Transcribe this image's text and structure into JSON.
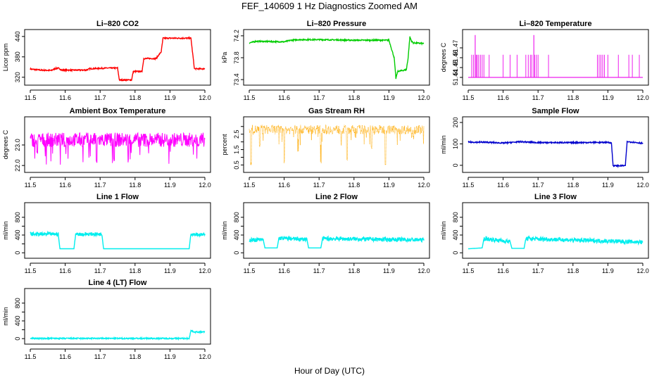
{
  "figure": {
    "title": "FEF_140609  1 Hz Diagnostics Zoomed AM",
    "xlabel": "Hour of Day (UTC)"
  },
  "chart_data": [
    {
      "id": "co2",
      "type": "line",
      "title": "Li–820 CO2",
      "ylabel": "Licor ppm",
      "color": "#ff0000",
      "xlim": [
        11.5,
        12.0
      ],
      "ylim": [
        305,
        450
      ],
      "yticks": [
        320,
        380,
        440
      ],
      "ytick_labels": [
        "320",
        "380",
        "440"
      ],
      "xticks": [
        11.5,
        11.6,
        11.7,
        11.8,
        11.9,
        12.0
      ],
      "xtick_labels": [
        "11.5",
        "11.6",
        "11.7",
        "11.8",
        "11.9",
        "12.0"
      ],
      "series": [
        {
          "name": "CO2",
          "x": [
            11.5,
            11.53,
            11.56,
            11.57,
            11.58,
            11.59,
            11.66,
            11.67,
            11.72,
            11.75,
            11.755,
            11.79,
            11.795,
            11.82,
            11.825,
            11.86,
            11.875,
            11.88,
            11.96,
            11.97,
            12.0
          ],
          "y": [
            344,
            341,
            340,
            345,
            347,
            341,
            341,
            345,
            347,
            347,
            312,
            312,
            337,
            337,
            375,
            375,
            395,
            435,
            435,
            345,
            345
          ]
        }
      ]
    },
    {
      "id": "pressure",
      "type": "line",
      "title": "Li–820 Pressure",
      "ylabel": "kPa",
      "color": "#00cc00",
      "xlim": [
        11.5,
        12.0
      ],
      "ylim": [
        73.35,
        74.25
      ],
      "yticks": [
        73.4,
        73.8,
        74.2
      ],
      "ytick_labels": [
        "73.4",
        "73.8",
        "74.2"
      ],
      "xticks": [
        11.5,
        11.6,
        11.7,
        11.8,
        11.9,
        12.0
      ],
      "xtick_labels": [
        "11.5",
        "11.6",
        "11.7",
        "11.8",
        "11.9",
        "12.0"
      ],
      "series": [
        {
          "name": "Pressure",
          "x": [
            11.5,
            11.52,
            11.6,
            11.62,
            11.64,
            11.7,
            11.8,
            11.9,
            11.915,
            11.92,
            11.925,
            11.95,
            11.955,
            11.96,
            11.965,
            11.97,
            12.0
          ],
          "y": [
            74.07,
            74.1,
            74.09,
            74.12,
            74.13,
            74.13,
            74.12,
            74.12,
            73.8,
            73.42,
            73.55,
            73.58,
            73.8,
            74.18,
            74.1,
            74.07,
            74.06
          ]
        }
      ]
    },
    {
      "id": "li_temp",
      "type": "line",
      "title": "Li–820 Temperature",
      "ylabel": "degrees C",
      "color": "#ee22ee",
      "xlim": [
        11.5,
        12.0
      ],
      "ylim": [
        51.435,
        51.485
      ],
      "yticks": [
        51.44,
        51.45,
        51.46,
        51.47
      ],
      "ytick_labels": [
        "51.44",
        "51.45",
        "51.46",
        "51.47"
      ],
      "xticks": [
        11.5,
        11.6,
        11.7,
        11.8,
        11.9,
        12.0
      ],
      "xtick_labels": [
        "11.5",
        "11.6",
        "11.7",
        "11.8",
        "11.9",
        "12.0"
      ],
      "series": [
        {
          "name": "Temperature",
          "base": 51.44,
          "spike_high": 51.463,
          "peak": 51.483,
          "spikes": [
            11.51,
            11.515,
            11.52,
            11.523,
            11.526,
            11.53,
            11.535,
            11.54,
            11.545,
            11.56,
            11.6,
            11.62,
            11.64,
            11.665,
            11.672,
            11.678,
            11.682,
            11.69,
            11.695,
            11.7,
            11.73,
            11.87,
            11.875,
            11.88,
            11.885,
            11.89,
            11.9,
            11.93,
            11.96,
            11.97,
            11.99
          ],
          "peak_x": [
            11.52,
            11.688
          ]
        }
      ]
    },
    {
      "id": "box_temp",
      "type": "line",
      "title": "Ambient Box Temperature",
      "ylabel": "degrees C",
      "color": "#ff00ff",
      "xlim": [
        11.5,
        12.0
      ],
      "ylim": [
        21.8,
        24.2
      ],
      "yticks": [
        22.0,
        23.0
      ],
      "ytick_labels": [
        "22.0",
        "23.0"
      ],
      "xticks": [
        11.5,
        11.6,
        11.7,
        11.8,
        11.9,
        12.0
      ],
      "xtick_labels": [
        "11.5",
        "11.6",
        "11.7",
        "11.8",
        "11.9",
        "12.0"
      ],
      "series": [
        {
          "name": "Box Temperature",
          "mean": 23.25,
          "spread": 0.35,
          "dips": [
            [
              11.52,
              22.5
            ],
            [
              11.69,
              22.1
            ],
            [
              11.74,
              22.2
            ],
            [
              11.6,
              22.8
            ],
            [
              11.98,
              22.8
            ]
          ]
        }
      ]
    },
    {
      "id": "rh",
      "type": "scatter",
      "title": "Gas Stream RH",
      "ylabel": "percent",
      "color": "#ffaa00",
      "xlim": [
        11.5,
        12.0
      ],
      "ylim": [
        0.2,
        3.4
      ],
      "yticks": [
        0.5,
        1.0,
        1.5,
        2.0,
        2.5,
        3.0
      ],
      "ytick_labels": [
        "0.5",
        "1.5",
        "2.5"
      ],
      "xticks": [
        11.5,
        11.6,
        11.7,
        11.8,
        11.9,
        12.0
      ],
      "xtick_labels": [
        "11.5",
        "11.6",
        "11.7",
        "11.8",
        "11.9",
        "12.0"
      ],
      "series": [
        {
          "name": "RH",
          "mean": 2.8,
          "spread": 0.3,
          "dips": [
            [
              11.505,
              0.5
            ],
            [
              11.6,
              0.6
            ],
            [
              11.64,
              1.3
            ],
            [
              11.705,
              0.6
            ],
            [
              11.78,
              0.8
            ],
            [
              11.89,
              0.5
            ],
            [
              11.97,
              2.2
            ],
            [
              11.53,
              1.6
            ],
            [
              11.85,
              1.5
            ]
          ]
        }
      ]
    },
    {
      "id": "sample_flow",
      "type": "line",
      "title": "Sample Flow",
      "ylabel": "ml/min",
      "color": "#0000cc",
      "xlim": [
        11.5,
        12.0
      ],
      "ylim": [
        -20,
        210
      ],
      "yticks": [
        0,
        100,
        200
      ],
      "ytick_labels": [
        "0",
        "100",
        "200"
      ],
      "xticks": [
        11.5,
        11.6,
        11.7,
        11.8,
        11.9,
        12.0
      ],
      "xtick_labels": [
        "11.5",
        "11.6",
        "11.7",
        "11.8",
        "11.9",
        "12.0"
      ],
      "series": [
        {
          "name": "Sample Flow",
          "x": [
            11.5,
            11.55,
            11.6,
            11.65,
            11.7,
            11.8,
            11.9,
            11.91,
            11.915,
            11.95,
            11.955,
            11.96,
            12.0
          ],
          "y": [
            108,
            108,
            104,
            110,
            106,
            106,
            107,
            105,
            -2,
            -2,
            110,
            110,
            103
          ]
        }
      ]
    },
    {
      "id": "line1",
      "type": "line",
      "title": "Line 1 Flow",
      "ylabel": "ml/min",
      "color": "#00eeee",
      "xlim": [
        11.5,
        12.0
      ],
      "ylim": [
        -60,
        1050
      ],
      "yticks": [
        0,
        200,
        400,
        600,
        800
      ],
      "ytick_labels": [
        "0",
        "400",
        "800"
      ],
      "xticks": [
        11.5,
        11.6,
        11.7,
        11.8,
        11.9,
        12.0
      ],
      "xtick_labels": [
        "11.5",
        "11.6",
        "11.7",
        "11.8",
        "11.9",
        "12.0"
      ],
      "series": [
        {
          "name": "Line 1",
          "x": [
            11.5,
            11.58,
            11.585,
            11.625,
            11.63,
            11.705,
            11.71,
            11.955,
            11.96,
            12.0
          ],
          "y": [
            420,
            420,
            90,
            90,
            420,
            420,
            90,
            90,
            430,
            400
          ],
          "noisy": [
            [
              11.5,
              11.58
            ],
            [
              11.63,
              11.705
            ],
            [
              11.96,
              12.0
            ]
          ],
          "noise": 40
        }
      ]
    },
    {
      "id": "line2",
      "type": "line",
      "title": "Line 2 Flow",
      "ylabel": "ml/min",
      "color": "#00eeee",
      "xlim": [
        11.5,
        12.0
      ],
      "ylim": [
        -60,
        1050
      ],
      "yticks": [
        0,
        200,
        400,
        600,
        800
      ],
      "ytick_labels": [
        "0",
        "400",
        "800"
      ],
      "xticks": [
        11.5,
        11.6,
        11.7,
        11.8,
        11.9,
        12.0
      ],
      "xtick_labels": [
        "11.5",
        "11.6",
        "11.7",
        "11.8",
        "11.9",
        "12.0"
      ],
      "series": [
        {
          "name": "Line 2",
          "x": [
            11.5,
            11.54,
            11.545,
            11.58,
            11.585,
            11.665,
            11.67,
            11.705,
            11.71,
            12.0
          ],
          "y": [
            290,
            290,
            110,
            110,
            330,
            300,
            110,
            110,
            320,
            290
          ],
          "noisy": [
            [
              11.5,
              11.54
            ],
            [
              11.585,
              11.665
            ],
            [
              11.71,
              12.0
            ]
          ],
          "noise": 45
        }
      ]
    },
    {
      "id": "line3",
      "type": "line",
      "title": "Line 3 Flow",
      "ylabel": "ml/min",
      "color": "#00eeee",
      "xlim": [
        11.5,
        12.0
      ],
      "ylim": [
        -60,
        1050
      ],
      "yticks": [
        0,
        200,
        400,
        600,
        800
      ],
      "ytick_labels": [
        "0",
        "400",
        "800"
      ],
      "xticks": [
        11.5,
        11.6,
        11.7,
        11.8,
        11.9,
        12.0
      ],
      "xtick_labels": [
        "11.5",
        "11.6",
        "11.7",
        "11.8",
        "11.9",
        "12.0"
      ],
      "series": [
        {
          "name": "Line 3",
          "x": [
            11.5,
            11.54,
            11.545,
            11.62,
            11.625,
            11.66,
            11.665,
            12.0
          ],
          "y": [
            90,
            110,
            320,
            250,
            100,
            100,
            320,
            240
          ],
          "noisy": [
            [
              11.545,
              11.62
            ],
            [
              11.665,
              12.0
            ]
          ],
          "noise": 45
        }
      ]
    },
    {
      "id": "line4",
      "type": "line",
      "title": "Line 4 (LT) Flow",
      "ylabel": "ml/min",
      "color": "#00eeee",
      "xlim": [
        11.5,
        12.0
      ],
      "ylim": [
        -60,
        1050
      ],
      "yticks": [
        0,
        200,
        400,
        600,
        800
      ],
      "ytick_labels": [
        "0",
        "400",
        "800"
      ],
      "xticks": [
        11.5,
        11.6,
        11.7,
        11.8,
        11.9,
        12.0
      ],
      "xtick_labels": [
        "11.5",
        "11.6",
        "11.7",
        "11.8",
        "11.9",
        "12.0"
      ],
      "series": [
        {
          "name": "Line 4",
          "x": [
            11.5,
            11.955,
            11.96,
            11.97,
            12.0
          ],
          "y": [
            5,
            5,
            180,
            150,
            150
          ]
        }
      ]
    }
  ]
}
